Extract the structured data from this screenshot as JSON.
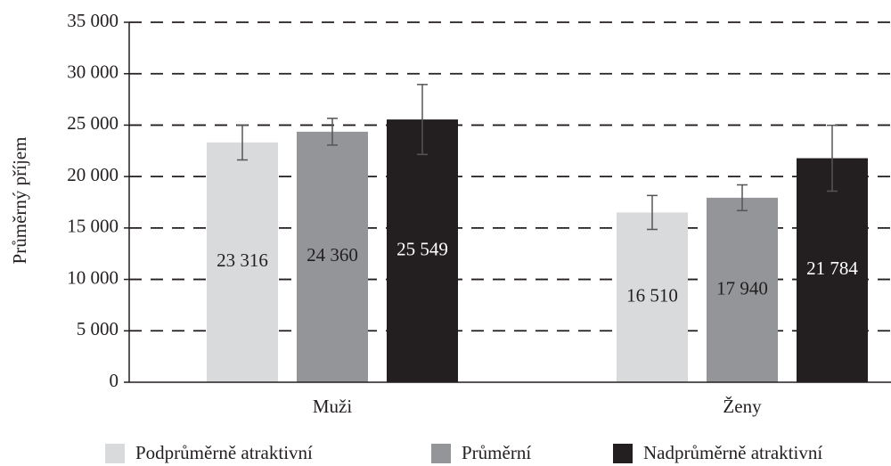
{
  "chart_data": {
    "type": "bar",
    "ylabel": "Průměrný příjem",
    "categories": [
      "Muži",
      "Ženy"
    ],
    "series": [
      {
        "name": "Podprůměrně atraktivní",
        "color": "#d9dadc",
        "values": [
          23316,
          16510
        ],
        "value_labels": [
          "23 316",
          "16 510"
        ],
        "errors": [
          1700,
          1650
        ]
      },
      {
        "name": "Průměrní",
        "color": "#939598",
        "values": [
          24360,
          17940
        ],
        "value_labels": [
          "24 360",
          "17 940"
        ],
        "errors": [
          1300,
          1250
        ]
      },
      {
        "name": "Nadprůměrně atraktivní",
        "color": "#231f20",
        "values": [
          25549,
          21784
        ],
        "value_labels": [
          "25 549",
          "21 784"
        ],
        "errors": [
          3400,
          3200
        ]
      }
    ],
    "ylim": [
      0,
      35000
    ],
    "yticks": [
      0,
      {
        "value": 5000,
        "label": "5 000"
      },
      {
        "value": 10000,
        "label": "10 000"
      },
      {
        "value": 15000,
        "label": "15 000"
      },
      {
        "value": 20000,
        "label": "20 000"
      },
      {
        "value": 25000,
        "label": "25 000"
      },
      {
        "value": 30000,
        "label": "30 000"
      },
      {
        "value": 35000,
        "label": "35 000"
      }
    ],
    "grid": true,
    "legend": "bottom"
  }
}
